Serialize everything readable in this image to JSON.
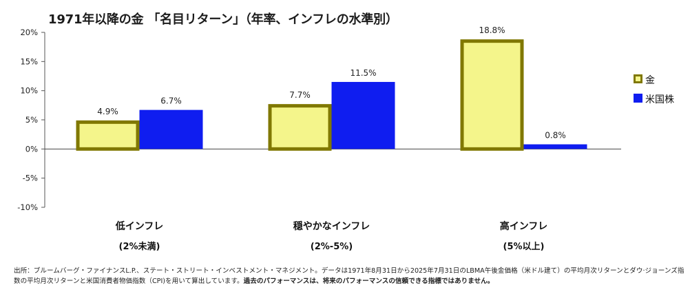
{
  "chart_data": {
    "type": "bar",
    "title": "1971年以降の金 「名目リターン」（年率、インフレの水準別）",
    "categories": [
      {
        "line1": "低インフレ",
        "line2": "(2%未満)"
      },
      {
        "line1": "穏やかなインフレ",
        "line2": "(2%-5%)"
      },
      {
        "line1": "高インフレ",
        "line2": "(5%以上)"
      }
    ],
    "series": [
      {
        "name": "金",
        "values": [
          4.9,
          7.7,
          18.8
        ],
        "labels": [
          "4.9%",
          "7.7%",
          "18.8%"
        ],
        "fill": "#f4f58b",
        "stroke": "#807800"
      },
      {
        "name": "米国株",
        "values": [
          6.7,
          11.5,
          0.8
        ],
        "labels": [
          "6.7%",
          "11.5%",
          "0.8%"
        ],
        "fill": "#0f1df0",
        "stroke": "#0f1df0"
      }
    ],
    "yticks": [
      20,
      15,
      10,
      5,
      0,
      -5,
      -10
    ],
    "ytick_labels": [
      "20%",
      "15%",
      "10%",
      "5%",
      "0%",
      "-5%",
      "-10%"
    ],
    "ylim": [
      -10,
      20
    ],
    "xlabel": "",
    "ylabel": "",
    "legend_position": "right",
    "grid": false
  },
  "source_note": "出所：ブルームバーグ・ファイナンスL.P.、ステート・ストリート・インベストメント・マネジメント。データは1971年8月31日から2025年7月31日のLBMA午後金価格（米ドル建て）の平均月次リターンとダウ·ジョーンズ指数の平均月次リターンと米国消費者物価指数（CPI)を用いて算出しています。",
  "source_note_bold": "過去のパフォーマンスは、将来のパフォーマンスの信頼できる指標ではありません。"
}
